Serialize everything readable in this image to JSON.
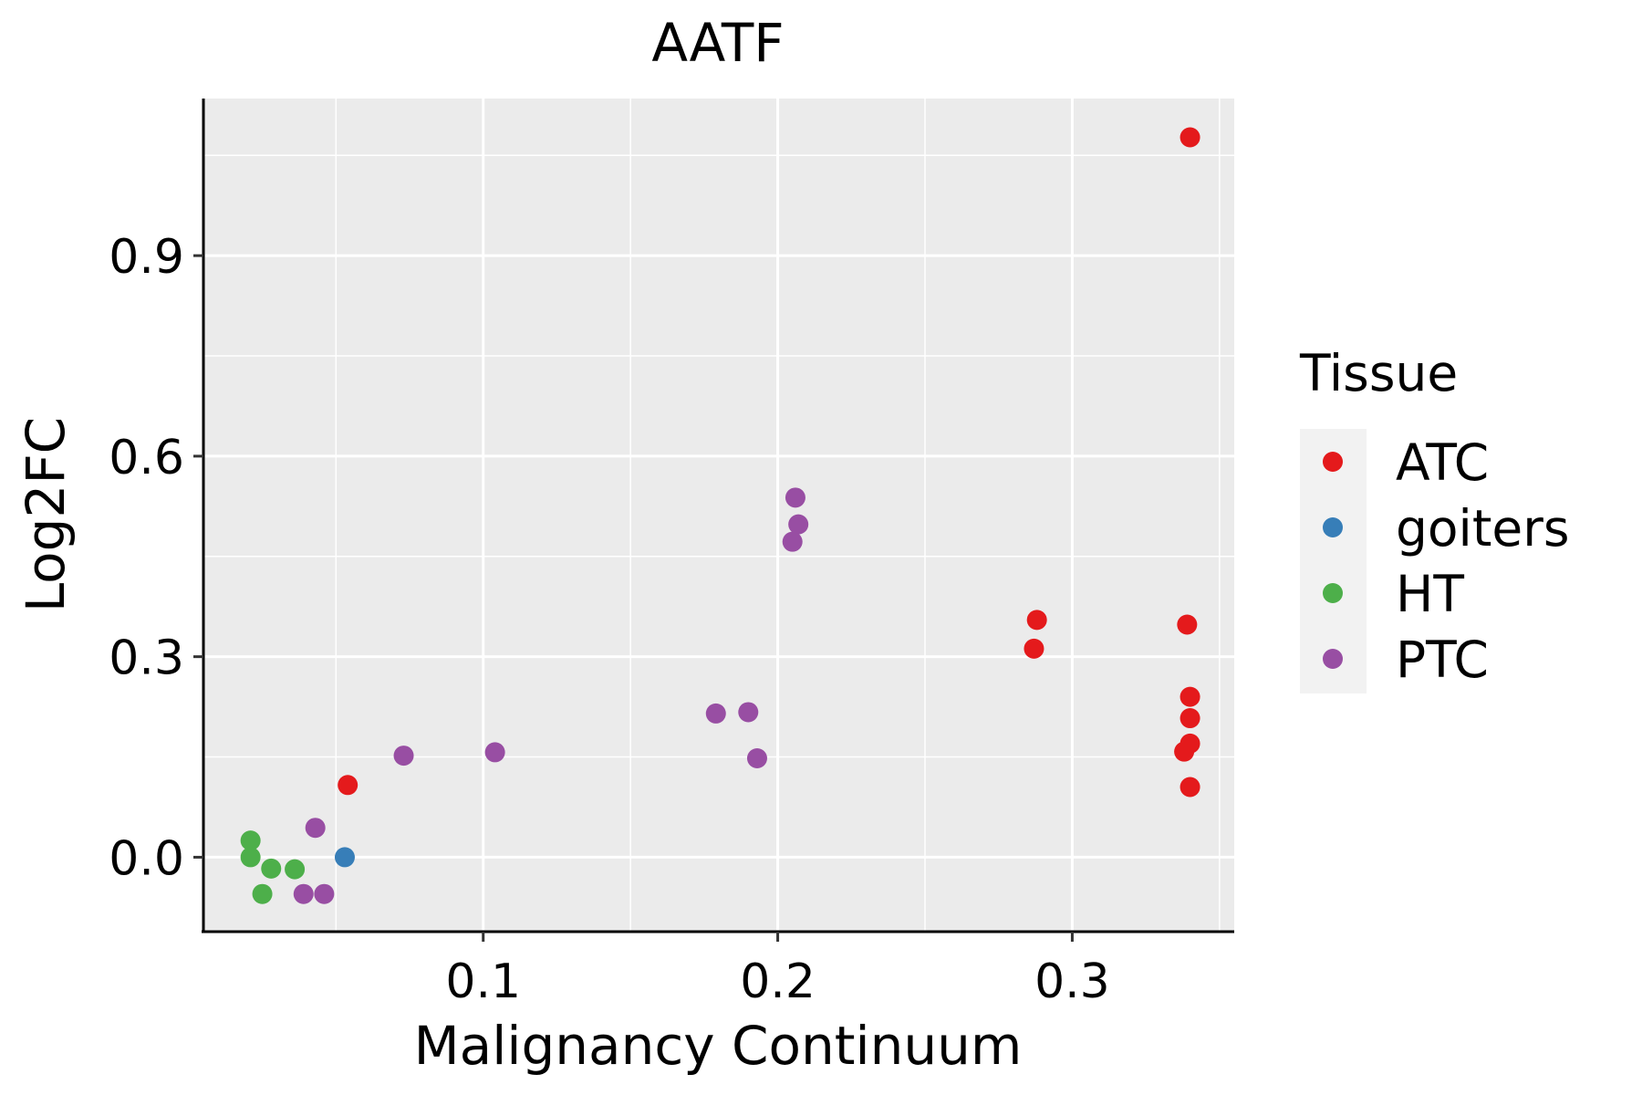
{
  "chart_data": {
    "type": "scatter",
    "title": "AATF",
    "xlabel": "Malignancy Continuum",
    "ylabel": "Log2FC",
    "xlim": [
      0.005,
      0.355
    ],
    "ylim": [
      -0.11,
      1.135
    ],
    "x_ticks": [
      0.1,
      0.2,
      0.3
    ],
    "x_tick_labels": [
      "0.1",
      "0.2",
      "0.3"
    ],
    "y_ticks": [
      0.0,
      0.3,
      0.6,
      0.9
    ],
    "y_tick_labels": [
      "0.0",
      "0.3",
      "0.6",
      "0.9"
    ],
    "x_minor": [
      0.05,
      0.15,
      0.25,
      0.35
    ],
    "y_minor": [
      0.15,
      0.45,
      0.75,
      1.05
    ],
    "grid": true,
    "legend": {
      "title": "Tissue",
      "position": "right"
    },
    "series": [
      {
        "name": "ATC",
        "color": "#E41A1C",
        "points": [
          {
            "x": 0.34,
            "y": 1.077
          },
          {
            "x": 0.288,
            "y": 0.355
          },
          {
            "x": 0.287,
            "y": 0.312
          },
          {
            "x": 0.339,
            "y": 0.348
          },
          {
            "x": 0.34,
            "y": 0.24
          },
          {
            "x": 0.34,
            "y": 0.208
          },
          {
            "x": 0.34,
            "y": 0.17
          },
          {
            "x": 0.338,
            "y": 0.158
          },
          {
            "x": 0.34,
            "y": 0.105
          },
          {
            "x": 0.054,
            "y": 0.108
          }
        ]
      },
      {
        "name": "goiters",
        "color": "#377EB8",
        "points": [
          {
            "x": 0.053,
            "y": 0.0
          }
        ]
      },
      {
        "name": "HT",
        "color": "#4DAF4A",
        "points": [
          {
            "x": 0.021,
            "y": 0.025
          },
          {
            "x": 0.021,
            "y": 0.0
          },
          {
            "x": 0.028,
            "y": -0.017
          },
          {
            "x": 0.036,
            "y": -0.018
          },
          {
            "x": 0.025,
            "y": -0.055
          }
        ]
      },
      {
        "name": "PTC",
        "color": "#984EA3",
        "points": [
          {
            "x": 0.206,
            "y": 0.538
          },
          {
            "x": 0.207,
            "y": 0.498
          },
          {
            "x": 0.205,
            "y": 0.472
          },
          {
            "x": 0.179,
            "y": 0.215
          },
          {
            "x": 0.19,
            "y": 0.217
          },
          {
            "x": 0.193,
            "y": 0.148
          },
          {
            "x": 0.104,
            "y": 0.157
          },
          {
            "x": 0.073,
            "y": 0.152
          },
          {
            "x": 0.043,
            "y": 0.044
          },
          {
            "x": 0.039,
            "y": -0.055
          },
          {
            "x": 0.046,
            "y": -0.055
          }
        ]
      }
    ]
  }
}
